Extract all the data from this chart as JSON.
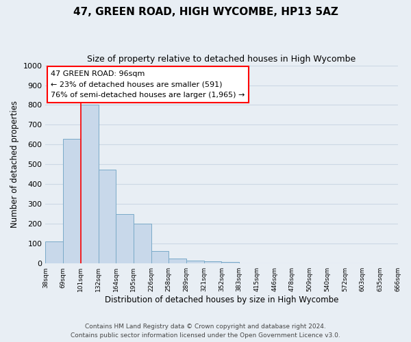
{
  "title": "47, GREEN ROAD, HIGH WYCOMBE, HP13 5AZ",
  "subtitle": "Size of property relative to detached houses in High Wycombe",
  "xlabel": "Distribution of detached houses by size in High Wycombe",
  "ylabel": "Number of detached properties",
  "bar_values": [
    110,
    630,
    800,
    475,
    250,
    200,
    62,
    25,
    15,
    10,
    8,
    0,
    0,
    0,
    0,
    0,
    0,
    0,
    0,
    0
  ],
  "bin_labels": [
    "38sqm",
    "69sqm",
    "101sqm",
    "132sqm",
    "164sqm",
    "195sqm",
    "226sqm",
    "258sqm",
    "289sqm",
    "321sqm",
    "352sqm",
    "383sqm",
    "415sqm",
    "446sqm",
    "478sqm",
    "509sqm",
    "540sqm",
    "572sqm",
    "603sqm",
    "635sqm",
    "666sqm"
  ],
  "bar_color": "#c8d8ea",
  "bar_edge_color": "#7aaac8",
  "bar_edge_width": 0.7,
  "red_line_x": 2,
  "annotation_line1": "47 GREEN ROAD: 96sqm",
  "annotation_line2": "← 23% of detached houses are smaller (591)",
  "annotation_line3": "76% of semi-detached houses are larger (1,965) →",
  "ylim": [
    0,
    1000
  ],
  "yticks": [
    0,
    100,
    200,
    300,
    400,
    500,
    600,
    700,
    800,
    900,
    1000
  ],
  "grid_color": "#ccd8e4",
  "fig_bg_color": "#e8eef4",
  "plot_bg_color": "#e8eef4",
  "footer_line1": "Contains HM Land Registry data © Crown copyright and database right 2024.",
  "footer_line2": "Contains public sector information licensed under the Open Government Licence v3.0."
}
